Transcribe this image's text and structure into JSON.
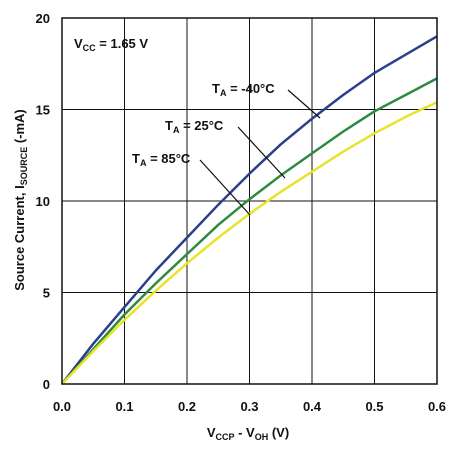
{
  "chart_data": {
    "type": "line",
    "xlabel": {
      "main": "V",
      "sub1": "CCP",
      "mid": " - V",
      "sub2": "OH",
      "tail": " (V)"
    },
    "ylabel": {
      "main": "Source Current, I",
      "sub": "SOURCE",
      "tail": " (-mA)"
    },
    "xlim": [
      0,
      0.6
    ],
    "ylim": [
      0,
      20
    ],
    "xticks": [
      "0.0",
      "0.1",
      "0.2",
      "0.3",
      "0.4",
      "0.5",
      "0.6"
    ],
    "yticks": [
      "0",
      "5",
      "10",
      "15",
      "20"
    ],
    "grid": true,
    "annotations": {
      "vcc": {
        "main": "V",
        "sub": "CC",
        "tail": " = 1.65 V"
      }
    },
    "series": [
      {
        "name": "T_A = -40°C",
        "label": {
          "main": "T",
          "sub": "A",
          "tail": " = -40°C"
        },
        "color": "#2b3f8c",
        "x": [
          0,
          0.05,
          0.1,
          0.15,
          0.2,
          0.25,
          0.3,
          0.35,
          0.4,
          0.45,
          0.5,
          0.55,
          0.6
        ],
        "y": [
          0,
          2.2,
          4.2,
          6.2,
          8.0,
          9.8,
          11.5,
          13.1,
          14.5,
          15.8,
          17.0,
          18.0,
          19.0
        ]
      },
      {
        "name": "T_A = 25°C",
        "label": {
          "main": "T",
          "sub": "A",
          "tail": " = 25°C"
        },
        "color": "#2e8b3e",
        "x": [
          0,
          0.05,
          0.1,
          0.15,
          0.2,
          0.25,
          0.3,
          0.35,
          0.4,
          0.45,
          0.5,
          0.55,
          0.6
        ],
        "y": [
          0,
          1.9,
          3.8,
          5.5,
          7.1,
          8.7,
          10.1,
          11.4,
          12.6,
          13.8,
          14.9,
          15.8,
          16.7
        ]
      },
      {
        "name": "T_A = 85°C",
        "label": {
          "main": "T",
          "sub": "A",
          "tail": " = 85°C"
        },
        "color": "#e8e32c",
        "x": [
          0,
          0.05,
          0.1,
          0.15,
          0.2,
          0.25,
          0.3,
          0.35,
          0.4,
          0.45,
          0.5,
          0.55,
          0.6
        ],
        "y": [
          0,
          1.8,
          3.5,
          5.1,
          6.6,
          8.0,
          9.3,
          10.5,
          11.6,
          12.7,
          13.7,
          14.6,
          15.4
        ]
      }
    ]
  }
}
